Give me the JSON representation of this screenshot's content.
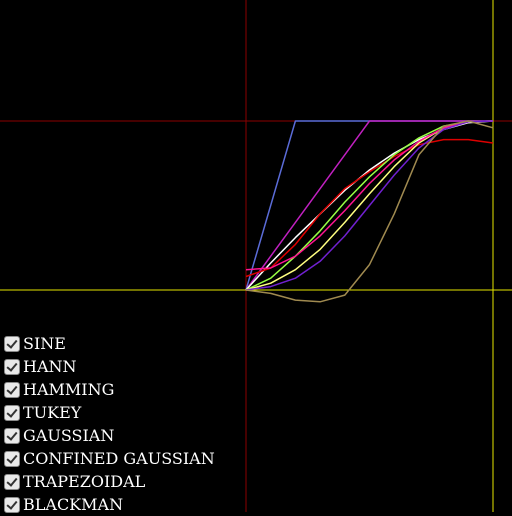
{
  "chart_data": {
    "type": "line",
    "title": "",
    "xlabel": "",
    "ylabel": "",
    "xlim": [
      -1,
      1
    ],
    "ylim": [
      -1,
      1
    ],
    "reference_lines": [
      {
        "axis": "x",
        "value": 0,
        "color": "#8b0000"
      },
      {
        "axis": "y",
        "value": 1,
        "color": "#8b0000"
      },
      {
        "axis": "x",
        "value": 1,
        "color": "#e6e600"
      },
      {
        "axis": "y",
        "value": 0,
        "color": "#e6e600"
      }
    ],
    "series": [
      {
        "color": "#5b6cd8",
        "x": [
          0,
          0.02,
          0.2,
          0.4,
          0.6,
          0.8,
          1
        ],
        "y": [
          0,
          0.1,
          1,
          1,
          1,
          1,
          1
        ]
      },
      {
        "color": "#c020c0",
        "x": [
          0,
          0.2,
          0.4,
          0.5,
          0.6,
          0.8,
          1
        ],
        "y": [
          0,
          0.4,
          0.8,
          1,
          1,
          1,
          1
        ]
      },
      {
        "color": "#ffffff",
        "x": [
          0,
          0.1,
          0.2,
          0.3,
          0.4,
          0.5,
          0.6,
          0.7,
          0.8,
          0.9,
          1
        ],
        "y": [
          0,
          0.16,
          0.31,
          0.45,
          0.59,
          0.71,
          0.81,
          0.89,
          0.95,
          0.99,
          1
        ]
      },
      {
        "color": "#dd0000",
        "x": [
          0,
          0.1,
          0.2,
          0.3,
          0.4,
          0.5,
          0.6,
          0.7,
          0.8,
          0.9,
          1
        ],
        "y": [
          0.08,
          0.13,
          0.27,
          0.45,
          0.6,
          0.7,
          0.79,
          0.86,
          0.89,
          0.89,
          0.87
        ]
      },
      {
        "color": "#99ff44",
        "x": [
          0,
          0.1,
          0.2,
          0.3,
          0.4,
          0.5,
          0.6,
          0.7,
          0.8,
          0.9,
          1
        ],
        "y": [
          0,
          0.07,
          0.2,
          0.35,
          0.52,
          0.67,
          0.8,
          0.9,
          0.97,
          0.995,
          1
        ]
      },
      {
        "color": "#ffff80",
        "x": [
          0,
          0.1,
          0.2,
          0.3,
          0.4,
          0.5,
          0.6,
          0.7,
          0.8,
          0.9,
          1
        ],
        "y": [
          0,
          0.04,
          0.12,
          0.24,
          0.4,
          0.57,
          0.73,
          0.87,
          0.96,
          0.995,
          1
        ]
      },
      {
        "color": "#ff1493",
        "x": [
          0,
          0.1,
          0.2,
          0.3,
          0.4,
          0.5,
          0.6,
          0.7,
          0.8,
          0.9,
          1
        ],
        "y": [
          0.12,
          0.13,
          0.2,
          0.32,
          0.47,
          0.63,
          0.77,
          0.88,
          0.96,
          0.995,
          1
        ]
      },
      {
        "color": "#7020d0",
        "x": [
          0,
          0.1,
          0.2,
          0.3,
          0.4,
          0.5,
          0.6,
          0.7,
          0.8,
          0.9,
          1
        ],
        "y": [
          0,
          0.02,
          0.07,
          0.17,
          0.32,
          0.5,
          0.68,
          0.84,
          0.95,
          0.995,
          1
        ]
      },
      {
        "color": "#a08a50",
        "x": [
          0,
          0.1,
          0.2,
          0.3,
          0.4,
          0.5,
          0.6,
          0.7,
          0.8,
          0.9,
          1
        ],
        "y": [
          0,
          -0.02,
          -0.06,
          -0.07,
          -0.03,
          0.15,
          0.45,
          0.8,
          0.97,
          1,
          0.96
        ]
      }
    ]
  },
  "legend": {
    "items": [
      "SINE",
      "HANN",
      "HAMMING",
      "TUKEY",
      "GAUSSIAN",
      "CONFINED GAUSSIAN",
      "TRAPEZOIDAL",
      "BLACKMAN"
    ],
    "checked": [
      true,
      true,
      true,
      true,
      true,
      true,
      true,
      true
    ]
  }
}
